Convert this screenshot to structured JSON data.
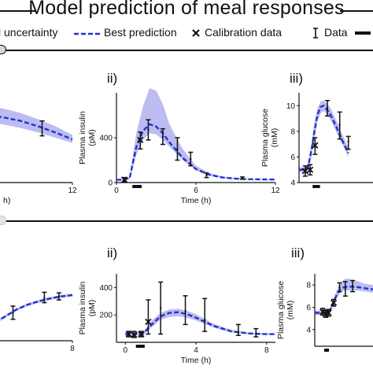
{
  "header": {
    "title": "Model prediction of meal responses",
    "legend": {
      "uncertainty": "l uncertainty",
      "best": "Best prediction",
      "calibration": "Calibration data",
      "data": "Data"
    }
  },
  "section_a": {
    "labels": {
      "ii": "ii)",
      "iii": "iii)"
    }
  },
  "section_b": {
    "labels": {
      "ii": "ii)",
      "iii": "iii)"
    }
  },
  "colors": {
    "prediction": "#2233cc",
    "band": "#bcbcf0",
    "marker": "#111111"
  },
  "chart_data": [
    {
      "id": "a_i",
      "type": "line",
      "title": "",
      "xlabel": "h",
      "ylabel": "",
      "xlim": [
        0,
        12
      ],
      "ylim": [
        0,
        1
      ],
      "xticks": [
        12
      ],
      "yticks": [],
      "series": [
        {
          "x": [
            0,
            2,
            4,
            6,
            8,
            10,
            12
          ],
          "y": [
            0.78,
            0.77,
            0.74,
            0.7,
            0.64,
            0.57,
            0.49
          ]
        }
      ],
      "band": {
        "x": [
          0,
          2,
          4,
          6,
          8,
          10,
          12
        ],
        "low": [
          0.7,
          0.69,
          0.66,
          0.62,
          0.57,
          0.51,
          0.45
        ],
        "high": [
          0.88,
          0.87,
          0.84,
          0.79,
          0.72,
          0.64,
          0.54
        ]
      },
      "data": [
        {
          "x": 2,
          "y": 0.8,
          "lo": 0.72,
          "hi": 0.95
        },
        {
          "x": 8.5,
          "y": 0.62,
          "lo": 0.53,
          "hi": 0.7
        }
      ],
      "calibration": []
    },
    {
      "id": "a_ii",
      "type": "line",
      "title": "",
      "xlabel": "Time (h)",
      "ylabel": "Plasma insulin (pM)",
      "xlim": [
        0,
        12
      ],
      "ylim": [
        0,
        800
      ],
      "xticks": [
        0,
        6,
        12
      ],
      "yticks": [
        0,
        400
      ],
      "series": [
        {
          "x": [
            0,
            0.5,
            1,
            1.5,
            2,
            2.5,
            3,
            3.5,
            4,
            5,
            6,
            7,
            8,
            9,
            10,
            11,
            12
          ],
          "y": [
            25,
            25,
            40,
            320,
            460,
            520,
            500,
            440,
            360,
            220,
            120,
            70,
            45,
            35,
            30,
            28,
            27
          ]
        }
      ],
      "band": {
        "x": [
          0,
          0.5,
          1,
          1.5,
          2,
          2.5,
          3,
          3.5,
          4,
          5,
          6,
          7,
          8,
          9,
          10,
          11,
          12
        ],
        "low": [
          20,
          20,
          30,
          250,
          380,
          440,
          430,
          380,
          320,
          200,
          110,
          62,
          40,
          30,
          27,
          25,
          24
        ],
        "high": [
          30,
          30,
          55,
          440,
          680,
          840,
          820,
          700,
          520,
          300,
          150,
          85,
          55,
          42,
          35,
          32,
          30
        ]
      },
      "data": [
        {
          "x": 0.6,
          "y": 25,
          "lo": 5,
          "hi": 45
        },
        {
          "x": 1.8,
          "y": 380,
          "lo": 300,
          "hi": 450
        },
        {
          "x": 2.4,
          "y": 470,
          "lo": 380,
          "hi": 560
        },
        {
          "x": 3.5,
          "y": 410,
          "lo": 340,
          "hi": 480
        },
        {
          "x": 4.6,
          "y": 300,
          "lo": 200,
          "hi": 400
        },
        {
          "x": 5.6,
          "y": 210,
          "lo": 150,
          "hi": 270
        },
        {
          "x": 6.8,
          "y": 65,
          "lo": 45,
          "hi": 85
        },
        {
          "x": 9.5,
          "y": 40,
          "lo": 30,
          "hi": 50
        }
      ],
      "calibration": [
        {
          "x": 0.6,
          "y": 25
        },
        {
          "x": 1.8,
          "y": 380
        }
      ],
      "meal": {
        "x0": 1.2,
        "x1": 1.9
      }
    },
    {
      "id": "a_iii",
      "type": "line",
      "title": "",
      "xlabel": "",
      "ylabel": "Plasma glucose (mM)",
      "xlim": [
        0,
        12
      ],
      "ylim": [
        4,
        11
      ],
      "xticks": [],
      "yticks": [
        4,
        6,
        8,
        10
      ],
      "series": [
        {
          "x": [
            0,
            1,
            1.5,
            2,
            2.5,
            3,
            3.5,
            4,
            5,
            6,
            7,
            8
          ],
          "y": [
            5.0,
            5.0,
            5.3,
            6.5,
            8.0,
            9.3,
            9.9,
            10.0,
            9.4,
            8.4,
            7.3,
            6.3
          ]
        }
      ],
      "band": {
        "x": [
          0,
          1,
          1.5,
          2,
          2.5,
          3,
          3.5,
          4,
          5,
          6,
          7,
          8
        ],
        "low": [
          4.8,
          4.8,
          5.0,
          6.0,
          7.4,
          8.8,
          9.4,
          9.6,
          9.0,
          8.0,
          7.0,
          6.0
        ],
        "high": [
          5.2,
          5.2,
          5.6,
          7.0,
          8.7,
          9.8,
          10.3,
          10.4,
          9.9,
          8.9,
          7.8,
          6.7
        ]
      },
      "data": [
        {
          "x": 1.0,
          "y": 4.9,
          "lo": 4.5,
          "hi": 5.3
        },
        {
          "x": 1.8,
          "y": 5.0,
          "lo": 4.6,
          "hi": 5.4
        },
        {
          "x": 2.6,
          "y": 6.9,
          "lo": 6.2,
          "hi": 7.5
        },
        {
          "x": 4.6,
          "y": 9.8,
          "lo": 9.2,
          "hi": 10.4
        },
        {
          "x": 6.6,
          "y": 8.5,
          "lo": 7.4,
          "hi": 9.5
        },
        {
          "x": 8.0,
          "y": 7.2,
          "lo": 6.6,
          "hi": 7.6
        }
      ],
      "calibration": [
        {
          "x": 1.0,
          "y": 4.9
        },
        {
          "x": 1.8,
          "y": 5.0
        },
        {
          "x": 2.6,
          "y": 6.9
        }
      ],
      "meal": {
        "x0": 2.2,
        "x1": 3.4
      }
    },
    {
      "id": "b_i",
      "type": "line",
      "title": "",
      "xlabel": "",
      "ylabel": "",
      "xlim": [
        0,
        8
      ],
      "ylim": [
        0,
        1
      ],
      "xticks": [
        8
      ],
      "yticks": [],
      "series": [
        {
          "x": [
            0,
            1,
            2,
            3,
            4,
            5,
            6,
            7,
            8
          ],
          "y": [
            0.18,
            0.25,
            0.35,
            0.45,
            0.52,
            0.57,
            0.61,
            0.64,
            0.66
          ]
        }
      ],
      "band": {
        "x": [
          0,
          1,
          2,
          3,
          4,
          5,
          6,
          7,
          8
        ],
        "low": [
          0.16,
          0.23,
          0.33,
          0.43,
          0.5,
          0.55,
          0.59,
          0.62,
          0.64
        ],
        "high": [
          0.2,
          0.27,
          0.37,
          0.47,
          0.54,
          0.59,
          0.63,
          0.66,
          0.68
        ]
      },
      "data": [
        {
          "x": 0.6,
          "y": 0.3,
          "lo": 0.25,
          "hi": 0.35
        },
        {
          "x": 2.7,
          "y": 0.4,
          "lo": 0.31,
          "hi": 0.5
        },
        {
          "x": 5.5,
          "y": 0.62,
          "lo": 0.55,
          "hi": 0.7
        },
        {
          "x": 6.8,
          "y": 0.64,
          "lo": 0.59,
          "hi": 0.69
        }
      ],
      "calibration": []
    },
    {
      "id": "b_ii",
      "type": "line",
      "title": "",
      "xlabel": "Time (h)",
      "ylabel": "Plasma insulin (pM)",
      "xlim": [
        -0.5,
        8.5
      ],
      "ylim": [
        0,
        500
      ],
      "xticks": [
        0,
        4,
        8
      ],
      "yticks": [
        200,
        400
      ],
      "series": [
        {
          "x": [
            0,
            0.5,
            1,
            1.5,
            2,
            2.5,
            3,
            3.5,
            4,
            5,
            6,
            7,
            8,
            8.5
          ],
          "y": [
            60,
            60,
            62,
            130,
            190,
            215,
            220,
            205,
            180,
            120,
            80,
            65,
            60,
            60
          ]
        }
      ],
      "band": {
        "x": [
          0,
          0.5,
          1,
          1.5,
          2,
          2.5,
          3,
          3.5,
          4,
          5,
          6,
          7,
          8,
          8.5
        ],
        "low": [
          50,
          50,
          52,
          110,
          165,
          185,
          190,
          180,
          160,
          108,
          72,
          58,
          54,
          54
        ],
        "high": [
          70,
          70,
          75,
          160,
          215,
          240,
          245,
          230,
          205,
          135,
          90,
          72,
          66,
          66
        ]
      },
      "data": [
        {
          "x": 0.2,
          "y": 60,
          "lo": 40,
          "hi": 80
        },
        {
          "x": 0.5,
          "y": 55,
          "lo": 35,
          "hi": 80
        },
        {
          "x": 0.9,
          "y": 60,
          "lo": 40,
          "hi": 80
        },
        {
          "x": 1.3,
          "y": 150,
          "lo": 60,
          "hi": 310
        },
        {
          "x": 2.0,
          "y": 250,
          "lo": 60,
          "hi": 440
        },
        {
          "x": 3.4,
          "y": 230,
          "lo": 130,
          "hi": 340
        },
        {
          "x": 4.5,
          "y": 165,
          "lo": 80,
          "hi": 320
        },
        {
          "x": 6.4,
          "y": 70,
          "lo": 50,
          "hi": 130
        },
        {
          "x": 7.4,
          "y": 60,
          "lo": 40,
          "hi": 100
        }
      ],
      "calibration": [
        {
          "x": 0.2,
          "y": 60
        },
        {
          "x": 0.5,
          "y": 55
        },
        {
          "x": 0.9,
          "y": 60
        },
        {
          "x": 1.3,
          "y": 150
        }
      ],
      "meal": {
        "x0": 0.6,
        "x1": 1.1
      }
    },
    {
      "id": "b_iii",
      "type": "line",
      "title": "",
      "xlabel": "",
      "ylabel": "Plasma glucose (mM)",
      "xlim": [
        0,
        8
      ],
      "ylim": [
        2.5,
        9
      ],
      "xticks": [],
      "yticks": [
        4,
        6,
        8
      ],
      "series": [
        {
          "x": [
            0,
            1,
            1.5,
            2,
            2.5,
            3,
            3.5,
            4,
            4.5,
            5,
            6,
            7,
            8
          ],
          "y": [
            5.5,
            5.5,
            5.5,
            5.6,
            6.3,
            7.1,
            7.6,
            7.8,
            7.85,
            7.85,
            7.8,
            7.7,
            7.6
          ]
        }
      ],
      "band": {
        "x": [
          0,
          1,
          1.5,
          2,
          2.5,
          3,
          3.5,
          4,
          4.5,
          5,
          6,
          7,
          8
        ],
        "low": [
          5.3,
          5.3,
          5.3,
          5.4,
          6.0,
          6.8,
          7.3,
          7.5,
          7.5,
          7.5,
          7.5,
          7.4,
          7.3
        ],
        "high": [
          5.7,
          5.7,
          5.7,
          5.8,
          6.6,
          7.5,
          8.1,
          8.5,
          8.6,
          8.5,
          8.3,
          8.1,
          8.0
        ]
      },
      "data": [
        {
          "x": 1.1,
          "y": 5.6,
          "lo": 5.3,
          "hi": 5.9
        },
        {
          "x": 1.5,
          "y": 5.4,
          "lo": 5.1,
          "hi": 5.7
        },
        {
          "x": 1.9,
          "y": 5.5,
          "lo": 5.2,
          "hi": 5.8
        },
        {
          "x": 2.6,
          "y": 6.4,
          "lo": 6.1,
          "hi": 6.7
        },
        {
          "x": 3.4,
          "y": 7.8,
          "lo": 7.4,
          "hi": 8.2
        },
        {
          "x": 4.2,
          "y": 7.7,
          "lo": 7.0,
          "hi": 8.3
        },
        {
          "x": 5.2,
          "y": 7.9,
          "lo": 7.4,
          "hi": 8.4
        }
      ],
      "calibration": [
        {
          "x": 1.1,
          "y": 5.6
        },
        {
          "x": 1.5,
          "y": 5.4
        },
        {
          "x": 1.9,
          "y": 5.5
        },
        {
          "x": 2.6,
          "y": 6.4
        }
      ],
      "meal": {
        "x0": 1.3,
        "x1": 1.9
      }
    }
  ]
}
